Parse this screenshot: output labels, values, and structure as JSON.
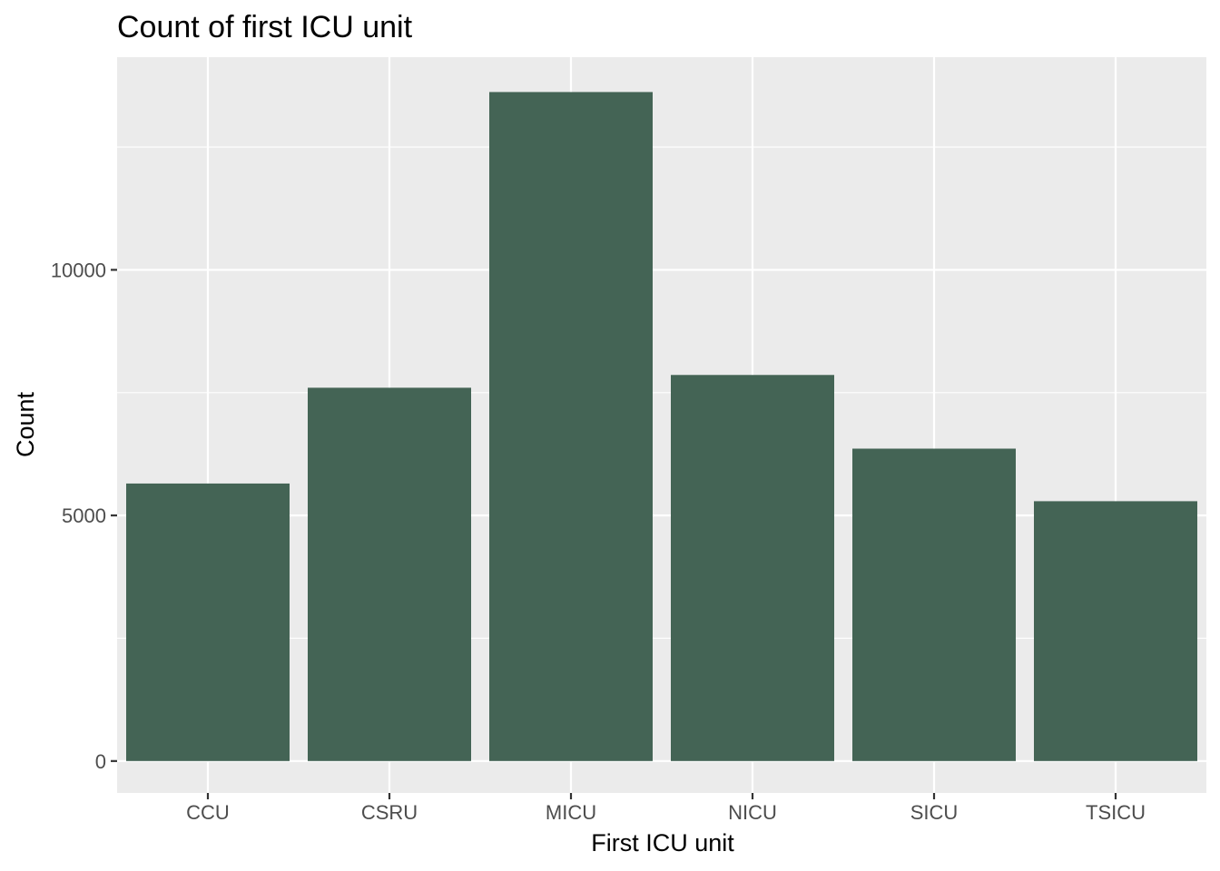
{
  "chart_data": {
    "type": "bar",
    "title": "Count of first ICU unit",
    "xlabel": "First ICU unit",
    "ylabel": "Count",
    "categories": [
      "CCU",
      "CSRU",
      "MICU",
      "NICU",
      "SICU",
      "TSICU"
    ],
    "values": [
      5650,
      7600,
      13620,
      7860,
      6360,
      5290
    ],
    "ylim": [
      -650,
      14330
    ],
    "yticks": [
      0,
      5000,
      10000
    ],
    "ytick_labels": [
      "0",
      "5000",
      "10000"
    ],
    "y_minor_gridlines": [
      2500,
      7500,
      12500
    ],
    "grid": true,
    "legend": "none",
    "colors": {
      "bar": "#446455",
      "panel": "#EBEBEB",
      "grid": "#FFFFFF",
      "tick_mark": "#333333",
      "tick_label": "#4D4D4D",
      "text": "#000000"
    }
  }
}
